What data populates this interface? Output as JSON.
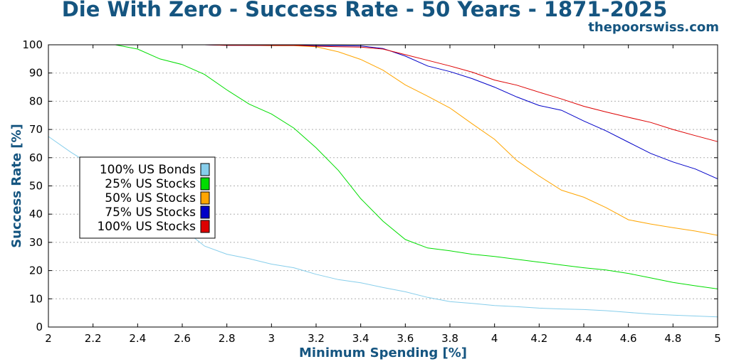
{
  "header": {
    "title": "Die With Zero - Success Rate - 50 Years - 1871-2025",
    "site": "thepoorswiss.com"
  },
  "colors": {
    "title": "#155580",
    "grid": "#b0b0b0"
  },
  "chart_data": {
    "type": "line",
    "title": "Die With Zero - Success Rate - 50 Years - 1871-2025",
    "xlabel": "Minimum Spending [%]",
    "ylabel": "Success Rate [%]",
    "xlim": [
      2,
      5
    ],
    "ylim": [
      0,
      100
    ],
    "xticks": [
      "2",
      "2.2",
      "2.4",
      "2.6",
      "2.8",
      "3",
      "3.2",
      "3.4",
      "3.6",
      "3.8",
      "4",
      "4.2",
      "4.4",
      "4.6",
      "4.8",
      "5"
    ],
    "yticks": [
      "0",
      "10",
      "20",
      "30",
      "40",
      "50",
      "60",
      "70",
      "80",
      "90",
      "100"
    ],
    "grid": "horizontal dotted",
    "legend_position": "left-center",
    "x": [
      2.0,
      2.1,
      2.2,
      2.3,
      2.4,
      2.5,
      2.6,
      2.7,
      2.8,
      2.9,
      3.0,
      3.1,
      3.2,
      3.3,
      3.4,
      3.5,
      3.6,
      3.7,
      3.8,
      3.9,
      4.0,
      4.1,
      4.2,
      4.3,
      4.4,
      4.5,
      4.6,
      4.7,
      4.8,
      4.9,
      5.0
    ],
    "series": [
      {
        "name": "100% US Bonds",
        "color": "#87ceeb",
        "values": [
          67.5,
          62,
          57,
          52,
          46,
          41,
          35,
          28.7,
          25.8,
          24.2,
          22.3,
          21,
          18.7,
          16.8,
          15.7,
          14,
          12.5,
          10.5,
          9,
          8.4,
          7.6,
          7.2,
          6.7,
          6.4,
          6.2,
          5.8,
          5.2,
          4.6,
          4.2,
          3.9,
          3.6
        ]
      },
      {
        "name": "25% US Stocks",
        "color": "#00dd00",
        "values": [
          100,
          100,
          100,
          100,
          98.5,
          95,
          93,
          89.5,
          84,
          79,
          75.5,
          70.5,
          63.5,
          55.5,
          45.5,
          37.5,
          31,
          28,
          27,
          25.8,
          25,
          24,
          23,
          22,
          21,
          20.2,
          19,
          17.4,
          15.8,
          14.6,
          13.5
        ]
      },
      {
        "name": "50% US Stocks",
        "color": "#ffa500",
        "values": [
          100,
          100,
          100,
          100,
          100,
          100,
          100,
          100,
          100,
          99.8,
          99.7,
          99.7,
          99.3,
          97.5,
          94.8,
          91,
          85.8,
          81.8,
          77.6,
          72,
          66.5,
          59,
          53.5,
          48.5,
          46,
          42.3,
          38,
          36.5,
          35.2,
          34,
          32.5
        ]
      },
      {
        "name": "75% US Stocks",
        "color": "#0000c8",
        "values": [
          100,
          100,
          100,
          100,
          100,
          100,
          100,
          100,
          99.8,
          99.8,
          99.8,
          99.8,
          99.7,
          99.7,
          99.6,
          98.7,
          96,
          92.5,
          90.5,
          88,
          85,
          81.5,
          78.5,
          76.8,
          73,
          69.5,
          65.5,
          61.5,
          58.5,
          56,
          52.5
        ]
      },
      {
        "name": "100% US Stocks",
        "color": "#dd0000",
        "values": [
          100,
          100,
          100,
          100,
          100,
          100,
          100,
          100,
          99.8,
          99.8,
          99.8,
          99.8,
          99.5,
          99.3,
          99.2,
          98.5,
          96.5,
          94.5,
          92.5,
          90.3,
          87.5,
          85.7,
          83.2,
          80.8,
          78.2,
          76.2,
          74.3,
          72.5,
          70,
          67.8,
          65.7
        ]
      }
    ]
  }
}
